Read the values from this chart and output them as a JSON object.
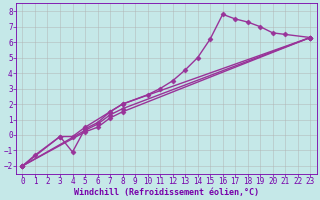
{
  "xlabel": "Windchill (Refroidissement éolien,°C)",
  "xlim": [
    -0.5,
    23.5
  ],
  "ylim": [
    -2.5,
    8.5
  ],
  "xticks": [
    0,
    1,
    2,
    3,
    4,
    5,
    6,
    7,
    8,
    9,
    10,
    11,
    12,
    13,
    14,
    15,
    16,
    17,
    18,
    19,
    20,
    21,
    22,
    23
  ],
  "yticks": [
    -2,
    -1,
    0,
    1,
    2,
    3,
    4,
    5,
    6,
    7,
    8
  ],
  "background_color": "#c5e8e8",
  "grid_color": "#b0b0b0",
  "line_color": "#993399",
  "curves": [
    {
      "x": [
        0,
        1,
        3,
        4,
        5,
        7,
        8,
        10,
        11,
        12,
        13,
        14,
        15,
        16,
        17,
        18,
        19,
        20,
        21,
        23
      ],
      "y": [
        -2.0,
        -1.3,
        -0.1,
        -0.1,
        0.5,
        1.5,
        2.0,
        2.6,
        3.0,
        3.5,
        4.2,
        5.0,
        6.2,
        7.8,
        7.5,
        7.3,
        7.0,
        6.6,
        6.5,
        6.3
      ]
    },
    {
      "x": [
        0,
        3,
        4,
        5,
        6,
        7,
        8,
        23
      ],
      "y": [
        -2.0,
        -0.1,
        -1.1,
        0.4,
        0.8,
        1.5,
        2.0,
        6.3
      ]
    },
    {
      "x": [
        0,
        5,
        6,
        7,
        8,
        23
      ],
      "y": [
        -2.0,
        0.3,
        0.7,
        1.3,
        1.7,
        6.3
      ]
    },
    {
      "x": [
        0,
        5,
        6,
        7,
        8,
        23
      ],
      "y": [
        -2.0,
        0.2,
        0.5,
        1.1,
        1.5,
        6.3
      ]
    }
  ],
  "marker": "D",
  "markersize": 2.5,
  "linewidth": 1.0,
  "font_color": "#7700aa",
  "tick_fontsize": 5.5,
  "label_fontsize": 6.0
}
